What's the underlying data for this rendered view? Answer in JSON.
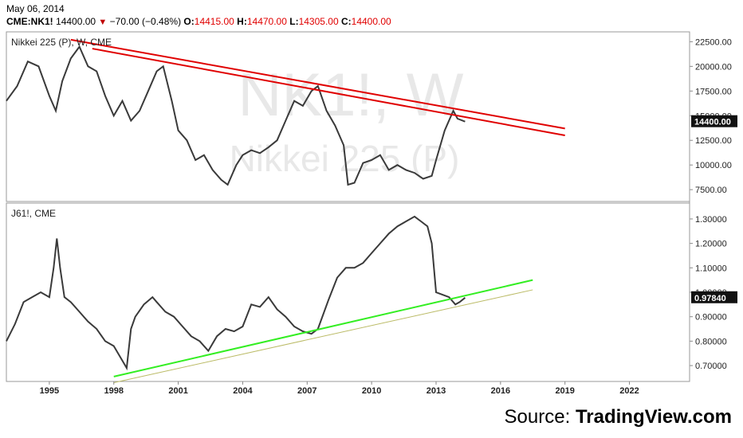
{
  "header": {
    "date": "May 06, 2014",
    "symbol": "CME:NK1!",
    "last": "14400.00",
    "change": "−70.00",
    "change_pct": "(−0.48%)",
    "o_label": "O:",
    "o": "14415.00",
    "h_label": "H:",
    "h": "14470.00",
    "l_label": "L:",
    "l": "14305.00",
    "c_label": "C:",
    "c": "14400.00"
  },
  "source": {
    "prefix": "Source: ",
    "brand": "TradingView.com"
  },
  "colors": {
    "price": "#3a3a3a",
    "resistance": "#e00000",
    "support": "#33ee22",
    "support_thin": "#bbbb66",
    "last_label_bg": "#111111",
    "watermark": "#e8e8e8"
  },
  "chart_data": [
    {
      "type": "line",
      "title": "Nikkei 225 (P), W, CME",
      "watermark_symbol": "NK1!, W",
      "watermark_name": "Nikkei 225 (P)",
      "x_ticks": [
        "1995",
        "1998",
        "2001",
        "2004",
        "2007",
        "2010",
        "2013",
        "2016",
        "2019",
        "2022"
      ],
      "xlim": [
        1993.0,
        2024.8
      ],
      "y_ticks": [
        "7500.00",
        "10000.00",
        "12500.00",
        "15000.00",
        "17500.00",
        "20000.00",
        "22500.00"
      ],
      "ylim": [
        6300,
        23500
      ],
      "last_value_label": "14400.00",
      "series": [
        {
          "x": [
            1993.0,
            1993.5,
            1994.0,
            1994.5,
            1995.0,
            1995.3,
            1995.6,
            1996.0,
            1996.4,
            1996.8,
            1997.2,
            1997.6,
            1998.0,
            1998.4,
            1998.8,
            1999.2,
            1999.6,
            2000.0,
            2000.3,
            2000.7,
            2001.0,
            2001.4,
            2001.8,
            2002.2,
            2002.6,
            2003.0,
            2003.3,
            2003.7,
            2004.0,
            2004.4,
            2004.8,
            2005.2,
            2005.6,
            2006.0,
            2006.4,
            2006.8,
            2007.2,
            2007.5,
            2007.9,
            2008.3,
            2008.7,
            2008.9,
            2009.2,
            2009.6,
            2010.0,
            2010.4,
            2010.8,
            2011.2,
            2011.6,
            2012.0,
            2012.4,
            2012.8,
            2013.0,
            2013.4,
            2013.8,
            2014.0,
            2014.35
          ],
          "y": [
            16500,
            18000,
            20500,
            20000,
            17000,
            15500,
            18500,
            20800,
            22000,
            20000,
            19500,
            17000,
            15000,
            16500,
            14500,
            15500,
            17500,
            19500,
            20000,
            16500,
            13500,
            12500,
            10500,
            11000,
            9500,
            8500,
            8000,
            10000,
            11000,
            11500,
            11200,
            11800,
            12500,
            14500,
            16500,
            16000,
            17500,
            18000,
            15500,
            14000,
            12000,
            8000,
            8200,
            10200,
            10500,
            11000,
            9500,
            10000,
            9500,
            9200,
            8600,
            8900,
            10500,
            13500,
            15500,
            14700,
            14400
          ]
        }
      ],
      "annotations": [
        {
          "type": "trendline",
          "color": "red",
          "x": [
            1997.0,
            2019.0
          ],
          "y": [
            21800,
            13000
          ]
        },
        {
          "type": "trendline",
          "color": "red",
          "x": [
            1996.0,
            2019.0
          ],
          "y": [
            22700,
            13700
          ]
        }
      ]
    },
    {
      "type": "line",
      "title": "J61!, CME",
      "x_ticks": [
        "1995",
        "1998",
        "2001",
        "2004",
        "2007",
        "2010",
        "2013",
        "2016",
        "2019",
        "2022"
      ],
      "xlim": [
        1993.0,
        2024.8
      ],
      "y_ticks": [
        "0.70000",
        "0.80000",
        "0.90000",
        "1.00000",
        "1.10000",
        "1.20000",
        "1.30000"
      ],
      "ylim": [
        0.635,
        1.365
      ],
      "last_value_label": "0.97840",
      "series": [
        {
          "x": [
            1993.0,
            1993.4,
            1993.8,
            1994.2,
            1994.6,
            1995.0,
            1995.2,
            1995.35,
            1995.5,
            1995.7,
            1996.0,
            1996.4,
            1996.8,
            1997.2,
            1997.6,
            1998.0,
            1998.4,
            1998.6,
            1998.8,
            1999.0,
            1999.4,
            1999.8,
            2000.0,
            2000.4,
            2000.8,
            2001.2,
            2001.6,
            2002.0,
            2002.4,
            2002.8,
            2003.2,
            2003.6,
            2004.0,
            2004.4,
            2004.8,
            2005.2,
            2005.6,
            2006.0,
            2006.4,
            2006.8,
            2007.2,
            2007.5,
            2008.0,
            2008.4,
            2008.8,
            2009.2,
            2009.6,
            2010.0,
            2010.4,
            2010.8,
            2011.2,
            2011.6,
            2012.0,
            2012.3,
            2012.6,
            2012.8,
            2013.0,
            2013.3,
            2013.6,
            2013.9,
            2014.1,
            2014.35
          ],
          "y": [
            0.8,
            0.87,
            0.96,
            0.98,
            1.0,
            0.98,
            1.1,
            1.22,
            1.1,
            0.98,
            0.96,
            0.92,
            0.88,
            0.85,
            0.8,
            0.78,
            0.72,
            0.69,
            0.85,
            0.9,
            0.95,
            0.98,
            0.96,
            0.92,
            0.9,
            0.86,
            0.82,
            0.8,
            0.76,
            0.82,
            0.85,
            0.84,
            0.86,
            0.95,
            0.94,
            0.98,
            0.93,
            0.9,
            0.86,
            0.84,
            0.83,
            0.85,
            0.97,
            1.06,
            1.1,
            1.1,
            1.12,
            1.16,
            1.2,
            1.24,
            1.27,
            1.29,
            1.31,
            1.29,
            1.27,
            1.2,
            1.0,
            0.99,
            0.98,
            0.95,
            0.96,
            0.978
          ]
        }
      ],
      "annotations": [
        {
          "type": "trendline",
          "color": "green",
          "x": [
            1998.0,
            2017.5
          ],
          "y": [
            0.655,
            1.05
          ]
        },
        {
          "type": "trendline",
          "color": "thin",
          "x": [
            1998.0,
            2017.5
          ],
          "y": [
            0.63,
            1.01
          ]
        }
      ]
    }
  ]
}
